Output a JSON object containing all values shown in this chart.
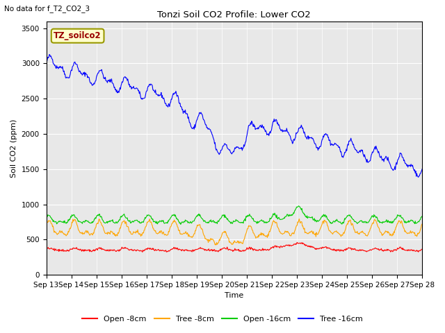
{
  "title": "Tonzi Soil CO2 Profile: Lower CO2",
  "subtitle": "No data for f_T2_CO2_3",
  "ylabel": "Soil CO2 (ppm)",
  "xlabel": "Time",
  "ylim": [
    0,
    3600
  ],
  "yticks": [
    0,
    500,
    1000,
    1500,
    2000,
    2500,
    3000,
    3500
  ],
  "legend_label": "TZ_soilco2",
  "series_labels": [
    "Open -8cm",
    "Tree -8cm",
    "Open -16cm",
    "Tree -16cm"
  ],
  "series_colors": [
    "#ff0000",
    "#ffa500",
    "#00cc00",
    "#0000ff"
  ],
  "plot_bg_color": "#e8e8e8",
  "fig_bg_color": "#ffffff",
  "n_points": 720,
  "xtick_labels": [
    "Sep 13",
    "Sep 14",
    "Sep 15",
    "Sep 16",
    "Sep 17",
    "Sep 18",
    "Sep 19",
    "Sep 20",
    "Sep 21",
    "Sep 22",
    "Sep 23",
    "Sep 24",
    "Sep 25",
    "Sep 26",
    "Sep 27",
    "Sep 28"
  ]
}
